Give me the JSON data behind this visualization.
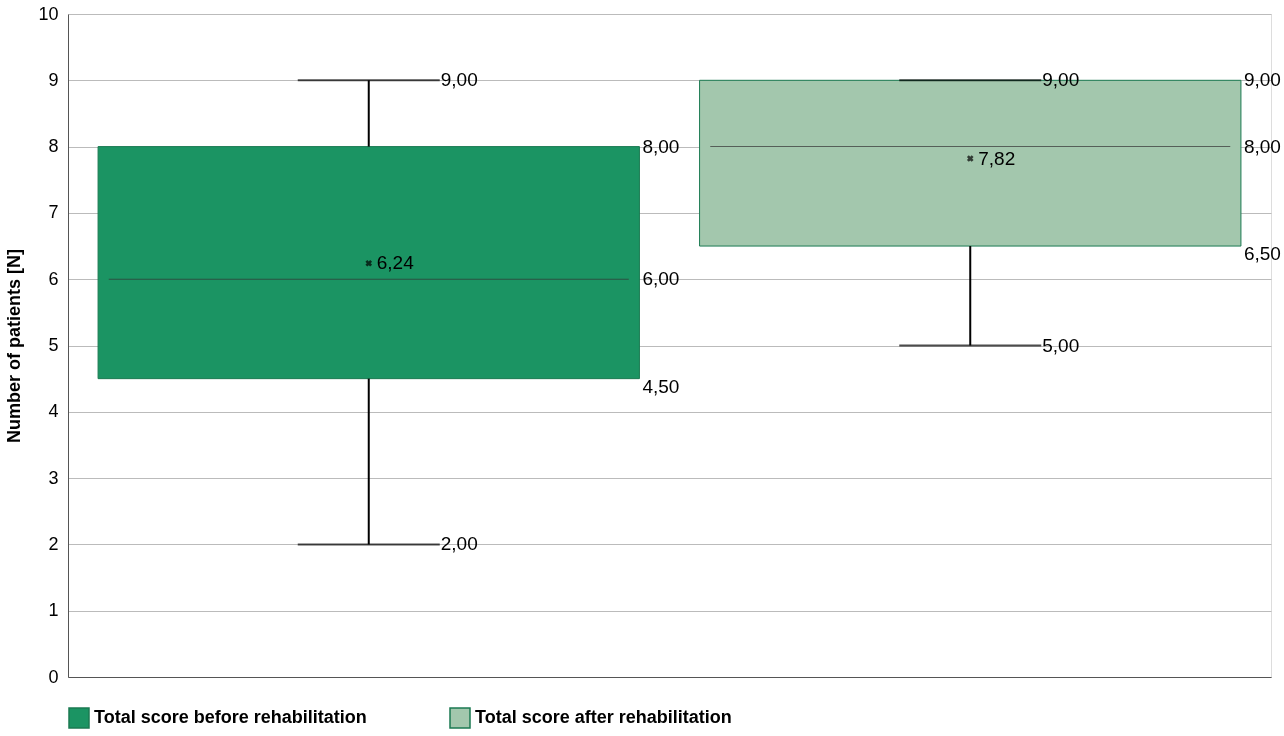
{
  "chart_data": {
    "type": "box",
    "ylabel": "Number of patients [N]",
    "categories": [
      null,
      null
    ],
    "series": [
      {
        "name": "Total score before rehabilitation",
        "color": "#1b9463",
        "boxes": [
          {
            "low": 2,
            "q1": 4.5,
            "median": 6,
            "q3": 8,
            "high": 9,
            "mean": 6.24
          },
          null
        ]
      },
      {
        "name": "Total score after rehabilitation",
        "color": "#a3c7ad",
        "boxes": [
          null,
          {
            "low": 5,
            "q1": 6.5,
            "median": 8,
            "q3": 9,
            "high": 9,
            "mean": 7.82
          }
        ]
      }
    ],
    "ylim": [
      0,
      10
    ],
    "yticks": [
      0,
      1,
      2,
      3,
      4,
      5,
      6,
      7,
      8,
      9,
      10
    ],
    "annotations": [
      "9,00",
      "8,00",
      "6,00",
      "6,24",
      "4,50",
      "2,00",
      "9,00",
      "9,00",
      "8,00",
      "7,82",
      "6,50",
      "5,00"
    ],
    "grid": "y",
    "legend": "bottom left",
    "marker": "cross",
    "tick_labels": "y"
  }
}
